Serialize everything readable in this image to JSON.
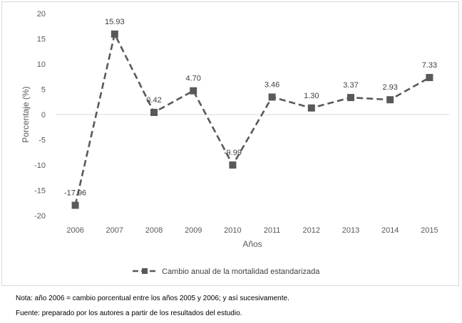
{
  "chart_data": {
    "type": "line",
    "title": "",
    "xlabel": "Años",
    "ylabel": "Porcentaje (%)",
    "ylim": [
      -20,
      20
    ],
    "yticks": [
      20,
      15,
      10,
      5,
      0,
      -5,
      -10,
      -15,
      -20
    ],
    "categories": [
      "2006",
      "2007",
      "2008",
      "2009",
      "2010",
      "2011",
      "2012",
      "2013",
      "2014",
      "2015"
    ],
    "series": [
      {
        "name": "Cambio anual de la mortalidad estandarizada",
        "values": [
          -17.96,
          15.93,
          0.42,
          4.7,
          -9.99,
          3.46,
          1.3,
          3.37,
          2.93,
          7.33
        ],
        "labels": [
          "-17.96",
          "15.93",
          "0.42",
          "4.70",
          "-9.99",
          "3.46",
          "1.30",
          "3.37",
          "2.93",
          "7.33"
        ],
        "color": "#595959",
        "line_style": "dashed",
        "marker": "square"
      }
    ],
    "grid": false,
    "legend_position": "bottom"
  },
  "notes": {
    "nota": "Nota: año 2006 = cambio porcentual entre los años 2005 y 2006; y así sucesivamente.",
    "fuente": "Fuente: preparado por los autores a partir de los resultados del estudio."
  }
}
